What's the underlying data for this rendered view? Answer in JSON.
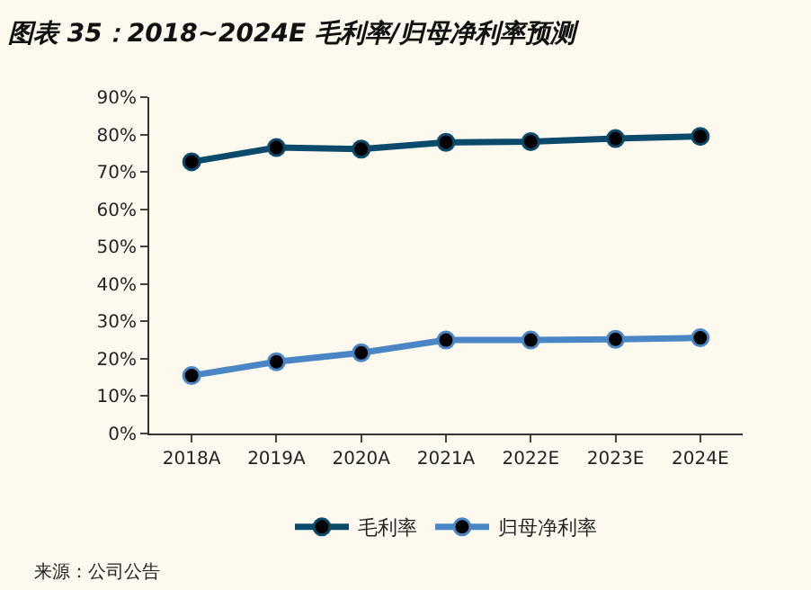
{
  "chart_data": {
    "type": "line",
    "title": "图表 35：2018~2024E 毛利率/归母净利率预测",
    "categories": [
      "2018A",
      "2019A",
      "2020A",
      "2021A",
      "2022E",
      "2023E",
      "2024E"
    ],
    "series": [
      {
        "name": "毛利率",
        "color": "#0b4a6b",
        "values": [
          72.7,
          76.5,
          76.1,
          77.9,
          78.1,
          78.9,
          79.5
        ]
      },
      {
        "name": "归母净利率",
        "color": "#4a86c5",
        "values": [
          15.5,
          19.2,
          21.6,
          25.0,
          25.0,
          25.2,
          25.6
        ]
      }
    ],
    "ylim": [
      0,
      90
    ],
    "yticks": [
      {
        "value": 0,
        "label": "0%"
      },
      {
        "value": 10,
        "label": "10%"
      },
      {
        "value": 20,
        "label": "20%"
      },
      {
        "value": 30,
        "label": "30%"
      },
      {
        "value": 40,
        "label": "40%"
      },
      {
        "value": 50,
        "label": "50%"
      },
      {
        "value": 60,
        "label": "60%"
      },
      {
        "value": 70,
        "label": "70%"
      },
      {
        "value": 80,
        "label": "80%"
      },
      {
        "value": 90,
        "label": "90%"
      }
    ],
    "grid": false,
    "legend": "bottom",
    "marker": "circle",
    "line_style": "solid",
    "annotations": [
      "来源：公司公告"
    ]
  }
}
